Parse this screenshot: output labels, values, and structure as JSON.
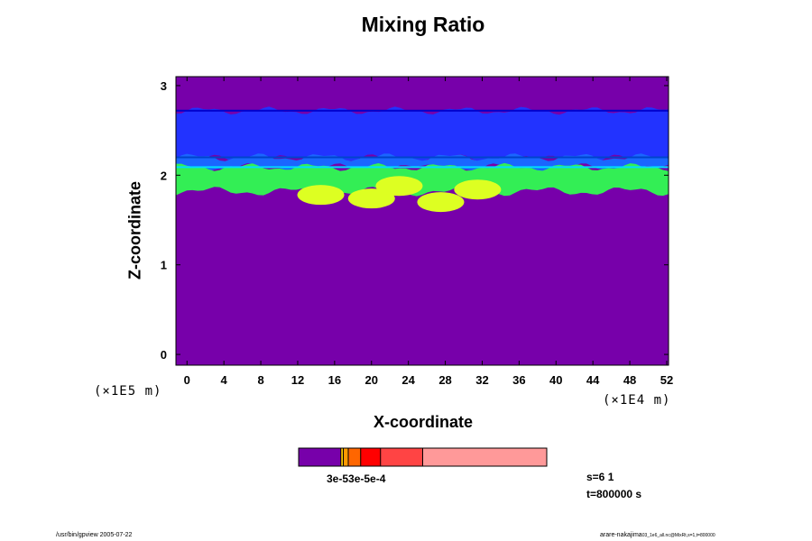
{
  "chart_data": {
    "type": "heatmap",
    "title": "Mixing Ratio",
    "xlabel": "X-coordinate",
    "ylabel": "Z-coordinate",
    "x_unit": "(×1E4 m)",
    "y_unit": "(×1E5 m)",
    "xlim": [
      -1.2,
      52.2
    ],
    "ylim": [
      -0.12,
      3.1
    ],
    "x_ticks": [
      0,
      4,
      8,
      12,
      16,
      20,
      24,
      28,
      32,
      36,
      40,
      44,
      48,
      52
    ],
    "y_ticks": [
      0,
      1,
      2,
      3
    ],
    "background_level": "violet (lowest)",
    "layers": [
      {
        "name": "upper-blue-band",
        "color": "#2233ff",
        "z_bottom": 2.18,
        "z_top": 2.72
      },
      {
        "name": "lower-blue-band",
        "color": "#1a66ff",
        "z_bottom": 2.08,
        "z_top": 2.2
      },
      {
        "name": "green-band",
        "color": "#33ee55",
        "z_bottom": 1.82,
        "z_top": 2.09
      },
      {
        "name": "yellow-patches",
        "color": "#ddff22",
        "z_bottom": 1.68,
        "z_top": 1.95
      }
    ],
    "colorbar": {
      "colors": [
        "#7700aa",
        "#ffcc00",
        "#ff9900",
        "#ff6600",
        "#ff0000",
        "#ff4444",
        "#ff9999"
      ],
      "bounds": [
        0,
        0.17,
        0.18,
        0.2,
        0.25,
        0.33,
        0.5,
        1.0
      ],
      "label": "3e-53e-5e-4"
    }
  },
  "info": {
    "slice": "s=6 1",
    "time": "t=800000 s"
  },
  "footer": {
    "left": "/usr/bin/gpview 2005-07-22",
    "right": "arare-nakajima",
    "right_small": "03_1e6_all.nc@MixRt,s=1,t=800000"
  }
}
